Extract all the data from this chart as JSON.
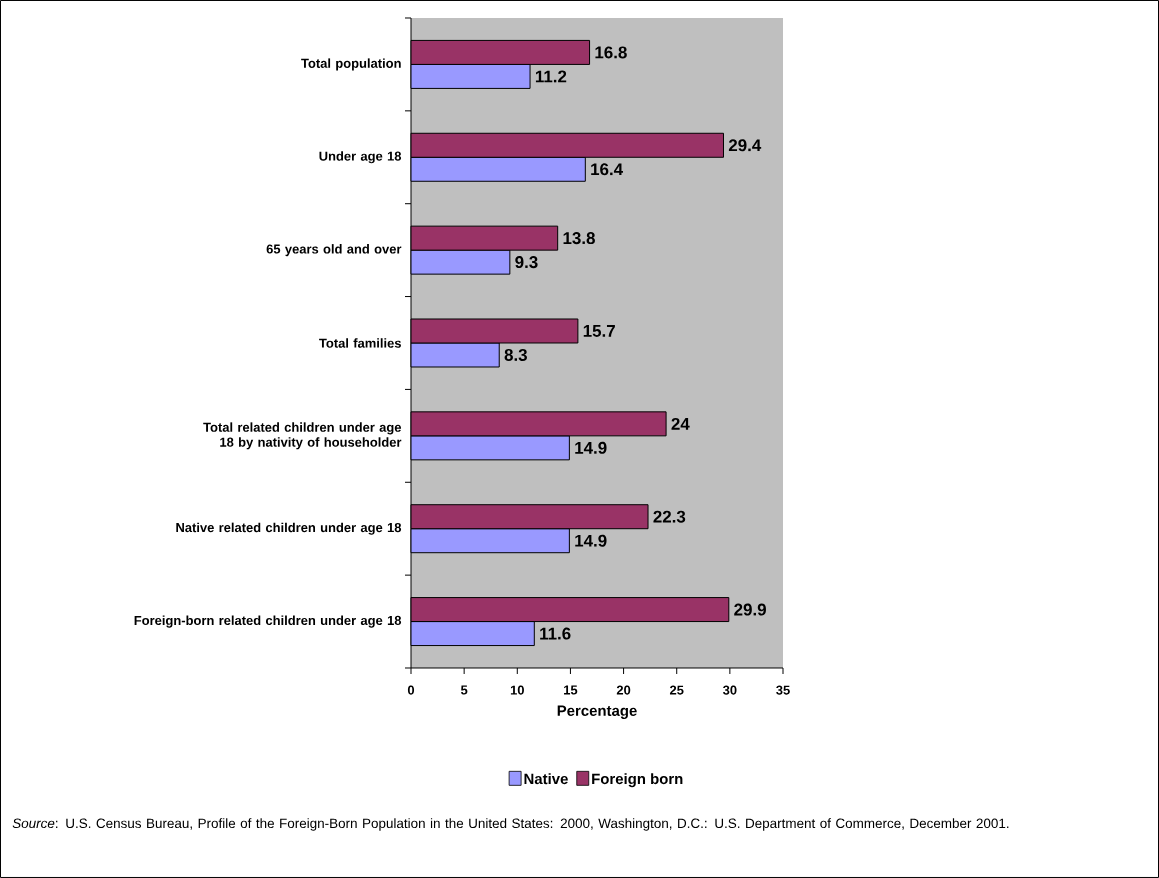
{
  "chart_data": {
    "type": "bar",
    "orientation": "horizontal",
    "categories": [
      "Total population",
      "Under age 18",
      "65 years old and over",
      "Total families",
      "Total related children under age 18 by nativity of householder",
      "Native related children under age 18",
      "Foreign-born related children under age 18"
    ],
    "series": [
      {
        "name": "Native",
        "color": "#9999ff",
        "values": [
          11.2,
          16.4,
          9.3,
          8.3,
          14.9,
          14.9,
          11.6
        ]
      },
      {
        "name": "Foreign born",
        "color": "#993366",
        "values": [
          16.8,
          29.4,
          13.8,
          15.7,
          24,
          22.3,
          29.9
        ]
      }
    ],
    "xlabel": "Percentage",
    "xlim": [
      0,
      35
    ],
    "xticks": [
      0,
      5,
      10,
      15,
      20,
      25,
      30,
      35
    ],
    "data_labels": true,
    "legend": "bottom",
    "grid": false,
    "annotations": [
      "*Source*: U.S. Census Bureau, Profile of the Foreign-Born Population in the United States: 2000, Washington, D.C.: U.S. Department of Commerce, December 2001."
    ]
  }
}
